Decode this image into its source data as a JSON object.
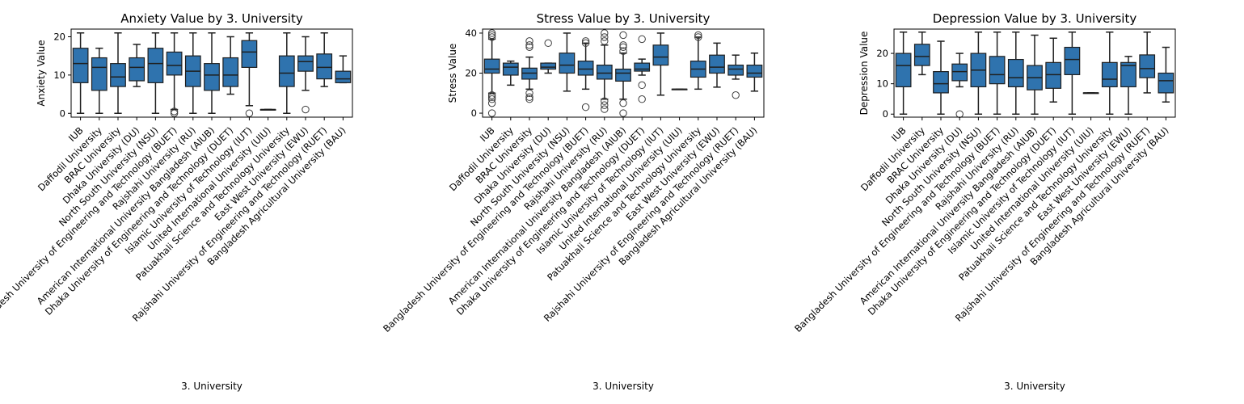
{
  "colors": {
    "box_fill": "#2f73ae",
    "median": "#1f1f1f",
    "outlier_edge": "#3c3c3c",
    "axis": "#000000"
  },
  "chart_data": [
    {
      "type": "box",
      "title": "Anxiety Value by 3. University",
      "xlabel": "3. University",
      "ylabel": "Anxiety Value",
      "ylim": [
        -1,
        22
      ],
      "yticks": [
        0,
        10,
        20
      ],
      "categories": [
        "IUB",
        "Daffodil University",
        "BRAC University",
        "Dhaka University (DU)",
        "North South University (NSU)",
        "Bangladesh University of Engineering and Technology (BUET)",
        "Rajshahi University (RU)",
        "American International University Bangladesh (AIUB)",
        "Dhaka University of Engineering and Technology (DUET)",
        "Islamic University of Technology (IUT)",
        "United International University (UIU)",
        "Patuakhali Science and Technology University",
        "East West University (EWU)",
        "Rajshahi University of Engineering and Technology (RUET)",
        "Bangladesh Agricultural University (BAU)"
      ],
      "boxes": [
        {
          "whislo": 0,
          "q1": 8,
          "med": 13,
          "q3": 17,
          "whishi": 21,
          "fliers": []
        },
        {
          "whislo": 0,
          "q1": 6,
          "med": 12,
          "q3": 14.5,
          "whishi": 17,
          "fliers": []
        },
        {
          "whislo": 0,
          "q1": 7,
          "med": 9.5,
          "q3": 13,
          "whishi": 21,
          "fliers": []
        },
        {
          "whislo": 7,
          "q1": 8.5,
          "med": 12,
          "q3": 14.5,
          "whishi": 18,
          "fliers": []
        },
        {
          "whislo": 0,
          "q1": 8,
          "med": 13,
          "q3": 17,
          "whishi": 21,
          "fliers": []
        },
        {
          "whislo": 1,
          "q1": 10,
          "med": 12.5,
          "q3": 16,
          "whishi": 21,
          "fliers": [
            0,
            0.5
          ]
        },
        {
          "whislo": 0,
          "q1": 7,
          "med": 11,
          "q3": 15,
          "whishi": 21,
          "fliers": []
        },
        {
          "whislo": 0,
          "q1": 6,
          "med": 10,
          "q3": 13,
          "whishi": 21,
          "fliers": []
        },
        {
          "whislo": 5,
          "q1": 7,
          "med": 10,
          "q3": 14.5,
          "whishi": 20,
          "fliers": []
        },
        {
          "whislo": 2,
          "q1": 12,
          "med": 16,
          "q3": 19,
          "whishi": 21,
          "fliers": [
            0
          ]
        },
        {
          "whislo": 1,
          "q1": 1,
          "med": 1,
          "q3": 1,
          "whishi": 1,
          "fliers": []
        },
        {
          "whislo": 0,
          "q1": 7,
          "med": 10.5,
          "q3": 15,
          "whishi": 21,
          "fliers": []
        },
        {
          "whislo": 6,
          "q1": 11,
          "med": 13.5,
          "q3": 15,
          "whishi": 20,
          "fliers": [
            1
          ]
        },
        {
          "whislo": 7,
          "q1": 9,
          "med": 12,
          "q3": 15.5,
          "whishi": 21,
          "fliers": []
        },
        {
          "whislo": 8,
          "q1": 8,
          "med": 9,
          "q3": 11,
          "whishi": 15,
          "fliers": []
        }
      ]
    },
    {
      "type": "box",
      "title": "Stress Value by 3. University",
      "xlabel": "3. University",
      "ylabel": "Stress Value",
      "ylim": [
        -2,
        42
      ],
      "yticks": [
        0,
        20,
        40
      ],
      "categories": [
        "IUB",
        "Daffodil University",
        "BRAC University",
        "Dhaka University (DU)",
        "North South University (NSU)",
        "Bangladesh University of Engineering and Technology (BUET)",
        "Rajshahi University (RU)",
        "American International University Bangladesh (AIUB)",
        "Dhaka University of Engineering and Technology (DUET)",
        "Islamic University of Technology (IUT)",
        "United International University (UIU)",
        "Patuakhali Science and Technology University",
        "East West University (EWU)",
        "Rajshahi University of Engineering and Technology (RUET)",
        "Bangladesh Agricultural University (BAU)"
      ],
      "boxes": [
        {
          "whislo": 10,
          "q1": 20,
          "med": 22,
          "q3": 27,
          "whishi": 37,
          "fliers": [
            0,
            5,
            7,
            8,
            9,
            38,
            39,
            40
          ]
        },
        {
          "whislo": 14,
          "q1": 19,
          "med": 23,
          "q3": 25,
          "whishi": 26,
          "fliers": []
        },
        {
          "whislo": 12,
          "q1": 17,
          "med": 20,
          "q3": 22.5,
          "whishi": 28,
          "fliers": [
            7,
            8,
            10,
            33,
            34,
            36
          ]
        },
        {
          "whislo": 20,
          "q1": 22,
          "med": 23,
          "q3": 25,
          "whishi": 25,
          "fliers": [
            35
          ]
        },
        {
          "whislo": 11,
          "q1": 20,
          "med": 24,
          "q3": 30,
          "whishi": 40,
          "fliers": []
        },
        {
          "whislo": 12,
          "q1": 19,
          "med": 22,
          "q3": 26,
          "whishi": 35,
          "fliers": [
            3,
            35,
            36
          ]
        },
        {
          "whislo": 7,
          "q1": 17,
          "med": 20,
          "q3": 24,
          "whishi": 34,
          "fliers": [
            2,
            4,
            6,
            36,
            38,
            40
          ]
        },
        {
          "whislo": 7,
          "q1": 16,
          "med": 20,
          "q3": 22,
          "whishi": 30,
          "fliers": [
            0,
            5,
            31,
            33,
            34,
            39
          ]
        },
        {
          "whislo": 19,
          "q1": 21,
          "med": 22,
          "q3": 25,
          "whishi": 27,
          "fliers": [
            7,
            14,
            37
          ]
        },
        {
          "whislo": 9,
          "q1": 24,
          "med": 28,
          "q3": 34,
          "whishi": 40,
          "fliers": []
        },
        {
          "whislo": 12,
          "q1": 12,
          "med": 12,
          "q3": 12,
          "whishi": 12,
          "fliers": []
        },
        {
          "whislo": 12,
          "q1": 18,
          "med": 22,
          "q3": 26,
          "whishi": 38,
          "fliers": [
            38,
            39
          ]
        },
        {
          "whislo": 13,
          "q1": 20,
          "med": 23,
          "q3": 29,
          "whishi": 35,
          "fliers": []
        },
        {
          "whislo": 17,
          "q1": 19,
          "med": 22,
          "q3": 24,
          "whishi": 29,
          "fliers": [
            9
          ]
        },
        {
          "whislo": 11,
          "q1": 18,
          "med": 20,
          "q3": 24,
          "whishi": 30,
          "fliers": []
        }
      ]
    },
    {
      "type": "box",
      "title": "Depression Value by 3. University",
      "xlabel": "3. University",
      "ylabel": "Depression Value",
      "ylim": [
        -1,
        28
      ],
      "yticks": [
        0,
        10,
        20
      ],
      "categories": [
        "IUB",
        "Daffodil University",
        "BRAC University",
        "Dhaka University (DU)",
        "North South University (NSU)",
        "Bangladesh University of Engineering and Technology (BUET)",
        "Rajshahi University (RU)",
        "American International University Bangladesh (AIUB)",
        "Dhaka University of Engineering and Technology (DUET)",
        "Islamic University of Technology (IUT)",
        "United International University (UIU)",
        "Patuakhali Science and Technology University",
        "East West University (EWU)",
        "Rajshahi University of Engineering and Technology (RUET)",
        "Bangladesh Agricultural University (BAU)"
      ],
      "boxes": [
        {
          "whislo": 0,
          "q1": 9,
          "med": 16,
          "q3": 20,
          "whishi": 27,
          "fliers": []
        },
        {
          "whislo": 13,
          "q1": 16,
          "med": 19,
          "q3": 23,
          "whishi": 27,
          "fliers": []
        },
        {
          "whislo": 0,
          "q1": 7,
          "med": 10,
          "q3": 14,
          "whishi": 24,
          "fliers": []
        },
        {
          "whislo": 9,
          "q1": 11,
          "med": 14,
          "q3": 16.5,
          "whishi": 20,
          "fliers": [
            0
          ]
        },
        {
          "whislo": 0,
          "q1": 9,
          "med": 14.5,
          "q3": 20,
          "whishi": 27,
          "fliers": []
        },
        {
          "whislo": 0,
          "q1": 10,
          "med": 13,
          "q3": 19,
          "whishi": 27,
          "fliers": []
        },
        {
          "whislo": 0,
          "q1": 9,
          "med": 12,
          "q3": 18,
          "whishi": 27,
          "fliers": []
        },
        {
          "whislo": 0,
          "q1": 8,
          "med": 12,
          "q3": 16,
          "whishi": 26,
          "fliers": []
        },
        {
          "whislo": 4,
          "q1": 8.5,
          "med": 13,
          "q3": 17,
          "whishi": 25,
          "fliers": []
        },
        {
          "whislo": 0,
          "q1": 13,
          "med": 18,
          "q3": 22,
          "whishi": 27,
          "fliers": []
        },
        {
          "whislo": 7,
          "q1": 7,
          "med": 7,
          "q3": 7,
          "whishi": 7,
          "fliers": []
        },
        {
          "whislo": 0,
          "q1": 9,
          "med": 11.5,
          "q3": 17,
          "whishi": 27,
          "fliers": []
        },
        {
          "whislo": 0,
          "q1": 9,
          "med": 16,
          "q3": 17,
          "whishi": 19,
          "fliers": []
        },
        {
          "whislo": 7,
          "q1": 12,
          "med": 15,
          "q3": 19.5,
          "whishi": 27,
          "fliers": []
        },
        {
          "whislo": 4,
          "q1": 7,
          "med": 11,
          "q3": 13.5,
          "whishi": 22,
          "fliers": []
        }
      ]
    }
  ]
}
